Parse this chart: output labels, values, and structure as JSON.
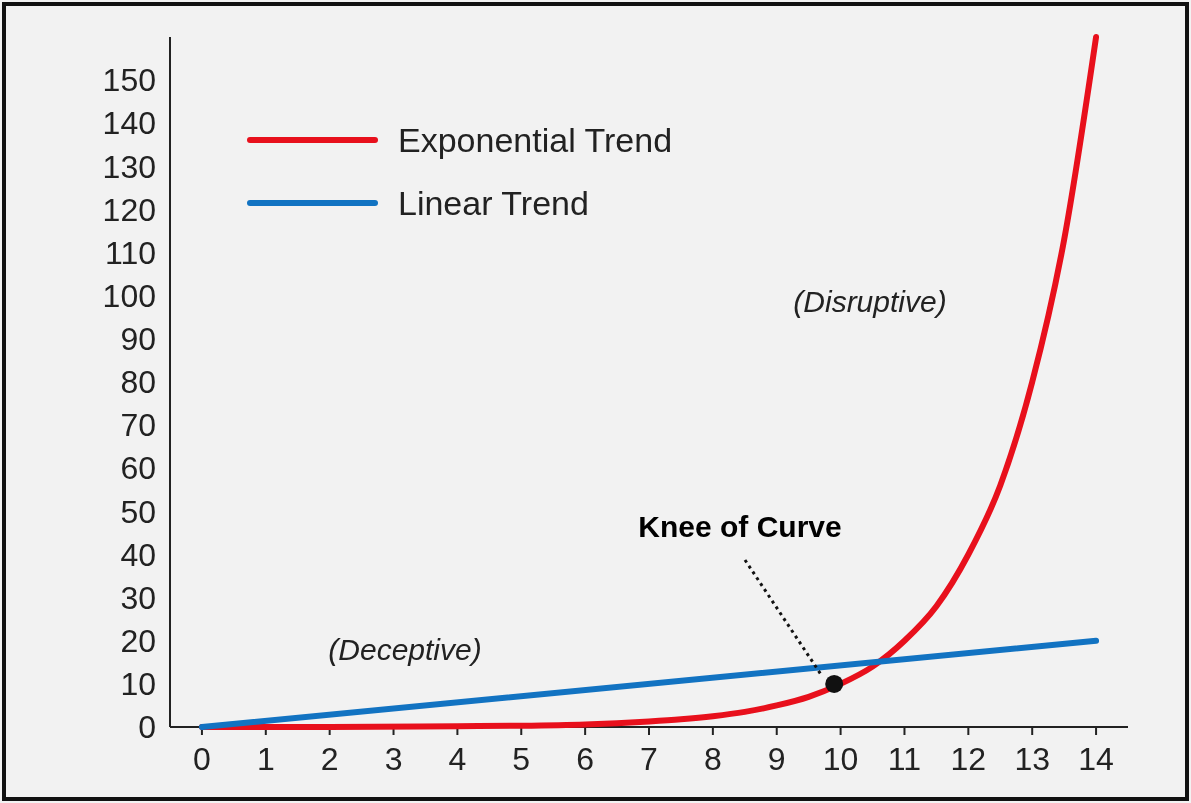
{
  "chart_data": {
    "type": "line",
    "xlim": [
      -0.5,
      14.5
    ],
    "ylim": [
      0,
      160
    ],
    "xticks": [
      0,
      1,
      2,
      3,
      4,
      5,
      6,
      7,
      8,
      9,
      10,
      11,
      12,
      13,
      14
    ],
    "yticks": [
      0,
      10,
      20,
      30,
      40,
      50,
      60,
      70,
      80,
      90,
      100,
      110,
      120,
      130,
      140,
      150
    ],
    "grid": false,
    "legend": "top left",
    "marker": "none",
    "line_style": "solid",
    "series": [
      {
        "name": "Exponential Trend",
        "color": "#e8101c",
        "x": [
          0,
          2,
          4,
          5,
          6,
          7,
          7.5,
          8,
          8.5,
          9,
          9.5,
          10,
          10.5,
          11,
          11.5,
          12,
          12.5,
          13,
          13.5,
          14
        ],
        "values": [
          0,
          0,
          0.2,
          0.3,
          0.6,
          1.3,
          1.8,
          2.5,
          3.5,
          5,
          7,
          10,
          14,
          20,
          28,
          40,
          56,
          80,
          113,
          160
        ]
      },
      {
        "name": "Linear Trend",
        "color": "#1273c2",
        "x": [
          0,
          14
        ],
        "values": [
          0,
          20
        ]
      },
      {
        "type": "scatter",
        "color": "#111111",
        "x": [
          9.9
        ],
        "values": [
          10
        ],
        "marker": "circle"
      }
    ],
    "annotations": [
      "Knee of Curve",
      "(Deceptive)",
      "(Disruptive)"
    ]
  }
}
